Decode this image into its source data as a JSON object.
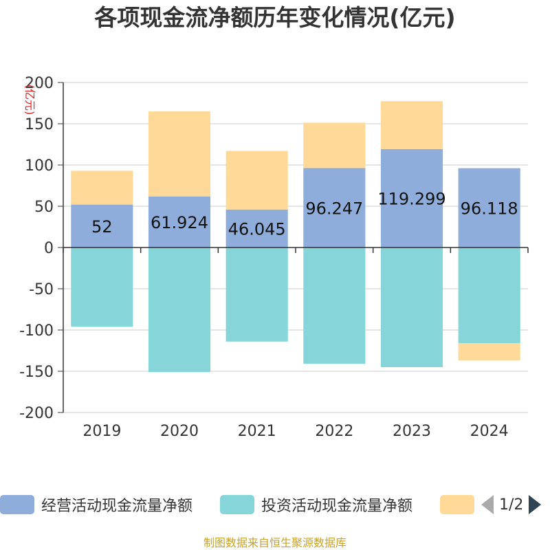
{
  "title": "各项现金流净额历年变化情况(亿元)",
  "source": "制图数据来自恒生聚源数据库",
  "chart_data": {
    "type": "bar",
    "stacked": true,
    "unit_label": "(亿元)",
    "categories": [
      "2019",
      "2020",
      "2021",
      "2022",
      "2023",
      "2024"
    ],
    "ylim": [
      -200,
      200
    ],
    "yticks": [
      200,
      150,
      100,
      50,
      0,
      -50,
      -100,
      -150,
      -200
    ],
    "grid": true,
    "series": [
      {
        "name": "经营活动现金流量净额",
        "color": "#8eaddb",
        "values": [
          52,
          61.924,
          46.045,
          96.247,
          119.299,
          96.118
        ],
        "labels": [
          "52",
          "61.924",
          "46.045",
          "96.247",
          "119.299",
          "96.118"
        ]
      },
      {
        "name": "投资活动现金流量净额",
        "color": "#86d5d8",
        "values": [
          -96,
          -151,
          -114,
          -141,
          -145,
          -116
        ],
        "labels": null
      },
      {
        "name": "",
        "color": "#fed998",
        "values": [
          41,
          103,
          71,
          55,
          58,
          -21
        ],
        "labels": null
      }
    ]
  },
  "legend": {
    "page_indicator": "1/2"
  }
}
